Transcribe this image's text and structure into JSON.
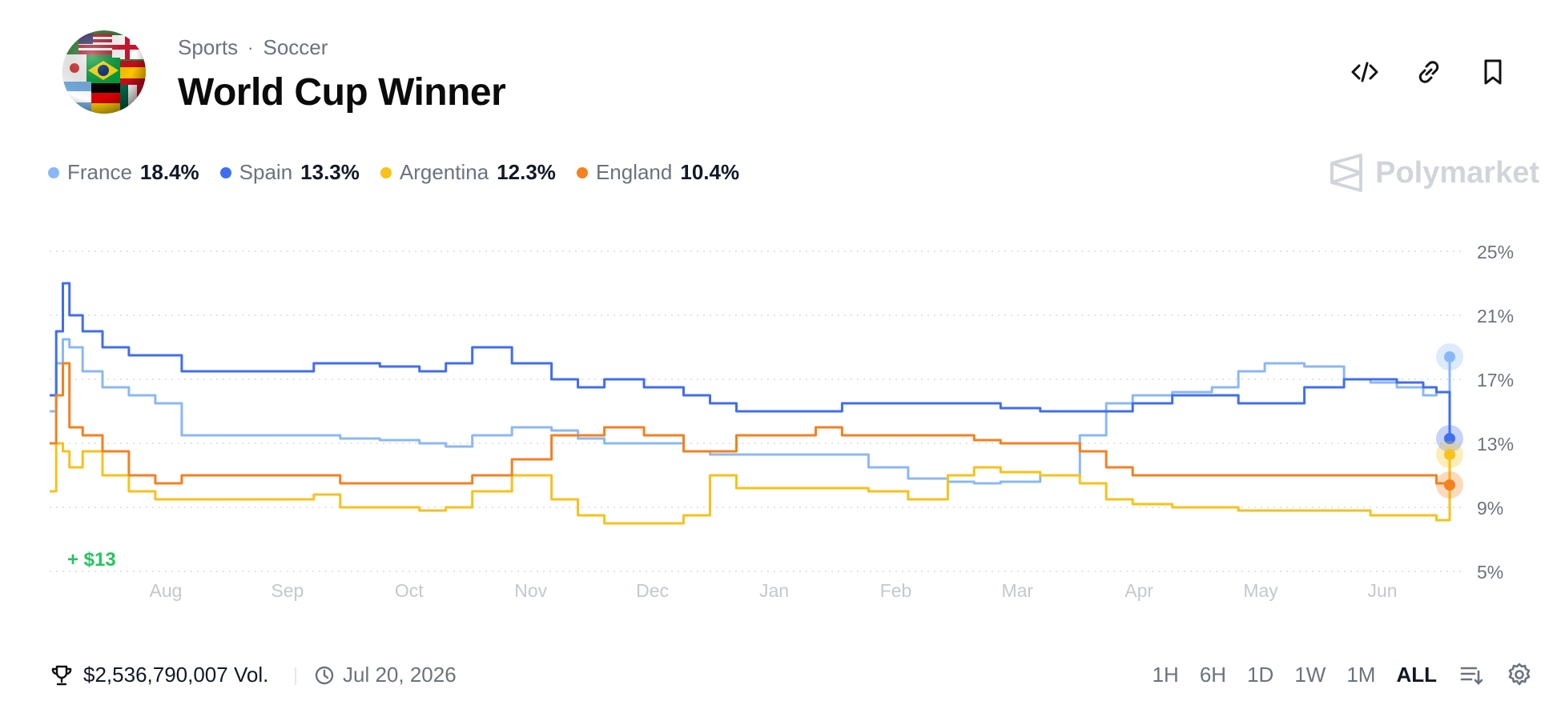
{
  "header": {
    "breadcrumb": [
      "Sports",
      "Soccer"
    ],
    "separator": "·",
    "title": "World Cup Winner",
    "actions": [
      {
        "name": "embed-icon"
      },
      {
        "name": "link-icon"
      },
      {
        "name": "bookmark-icon"
      }
    ]
  },
  "brand": {
    "name": "Polymarket"
  },
  "legend": [
    {
      "name": "France",
      "pct": "18.4%",
      "color": "#8ab8f7"
    },
    {
      "name": "Spain",
      "pct": "13.3%",
      "color": "#3f6ef0"
    },
    {
      "name": "Argentina",
      "pct": "12.3%",
      "color": "#f7c21a"
    },
    {
      "name": "England",
      "pct": "10.4%",
      "color": "#f5801f"
    }
  ],
  "pnl": "+ $13",
  "footer": {
    "volume": "$2,536,790,007 Vol.",
    "date": "Jul 20, 2026",
    "ranges": [
      "1H",
      "6H",
      "1D",
      "1W",
      "1M",
      "ALL"
    ],
    "active_range": "ALL"
  },
  "chart_data": {
    "type": "line",
    "x_ticks": [
      "Aug",
      "Sep",
      "Oct",
      "Nov",
      "Dec",
      "Jan",
      "Feb",
      "Mar",
      "Apr",
      "May",
      "Jun"
    ],
    "y_ticks": [
      "25%",
      "21%",
      "17%",
      "13%",
      "9%",
      "5%"
    ],
    "ylim": [
      5,
      25
    ],
    "grid": true,
    "x": [
      0,
      0.05,
      0.1,
      0.15,
      0.25,
      0.4,
      0.6,
      0.8,
      1,
      1.2,
      1.5,
      1.8,
      2,
      2.2,
      2.5,
      2.8,
      3,
      3.2,
      3.5,
      3.8,
      4,
      4.2,
      4.5,
      4.8,
      5,
      5.2,
      5.5,
      5.8,
      6,
      6.2,
      6.5,
      6.8,
      7,
      7.2,
      7.5,
      7.8,
      8,
      8.2,
      8.5,
      8.8,
      9,
      9.2,
      9.5,
      9.8,
      10,
      10.2,
      10.4,
      10.5,
      10.6
    ],
    "series": [
      {
        "name": "France",
        "color": "#8ab8f7",
        "values": [
          15,
          18,
          19.5,
          19,
          17.5,
          16.5,
          16,
          15.5,
          13.5,
          13.5,
          13.5,
          13.5,
          13.5,
          13.3,
          13.2,
          13,
          12.8,
          13.5,
          14,
          13.8,
          13.3,
          13,
          13,
          12.5,
          12.3,
          12.3,
          12.3,
          12.3,
          12.3,
          11.5,
          10.8,
          10.6,
          10.5,
          10.6,
          11,
          13.5,
          15.5,
          16,
          16.2,
          16.5,
          17.5,
          18,
          17.8,
          17,
          16.8,
          16.5,
          16,
          16.2,
          18.4
        ]
      },
      {
        "name": "Spain",
        "color": "#3f6ef0",
        "values": [
          16,
          20,
          23,
          21,
          20,
          19,
          18.5,
          18.5,
          17.5,
          17.5,
          17.5,
          17.5,
          18,
          18,
          17.8,
          17.5,
          18,
          19,
          18,
          17,
          16.5,
          17,
          16.5,
          16,
          15.5,
          15,
          15,
          15,
          15.5,
          15.5,
          15.5,
          15.5,
          15.5,
          15.2,
          15,
          15,
          15,
          15.5,
          16,
          16,
          15.5,
          15.5,
          16.5,
          17,
          17,
          16.8,
          16.5,
          16.2,
          13.3
        ]
      },
      {
        "name": "Argentina",
        "color": "#f7c21a",
        "values": [
          10,
          13,
          12.5,
          11.5,
          12.5,
          11,
          10,
          9.5,
          9.5,
          9.5,
          9.5,
          9.5,
          9.8,
          9,
          9,
          8.8,
          9,
          10,
          11,
          9.5,
          8.5,
          8,
          8,
          8.5,
          11,
          10.2,
          10.2,
          10.2,
          10.2,
          10,
          9.5,
          11,
          11.5,
          11.2,
          11,
          10.5,
          9.5,
          9.2,
          9,
          9,
          8.8,
          8.8,
          8.8,
          8.8,
          8.5,
          8.5,
          8.5,
          8.2,
          12.3
        ]
      },
      {
        "name": "England",
        "color": "#f5801f",
        "values": [
          13,
          16,
          18,
          14,
          13.5,
          12.5,
          11,
          10.5,
          11,
          11,
          11,
          11,
          11,
          10.5,
          10.5,
          10.5,
          10.5,
          11,
          12,
          13.5,
          13.5,
          14,
          13.5,
          12.5,
          12.5,
          13.5,
          13.5,
          14,
          13.5,
          13.5,
          13.5,
          13.5,
          13.2,
          13,
          13,
          12.5,
          11.5,
          11,
          11,
          11,
          11,
          11,
          11,
          11,
          11,
          11,
          11,
          10.5,
          10.4
        ]
      }
    ]
  }
}
